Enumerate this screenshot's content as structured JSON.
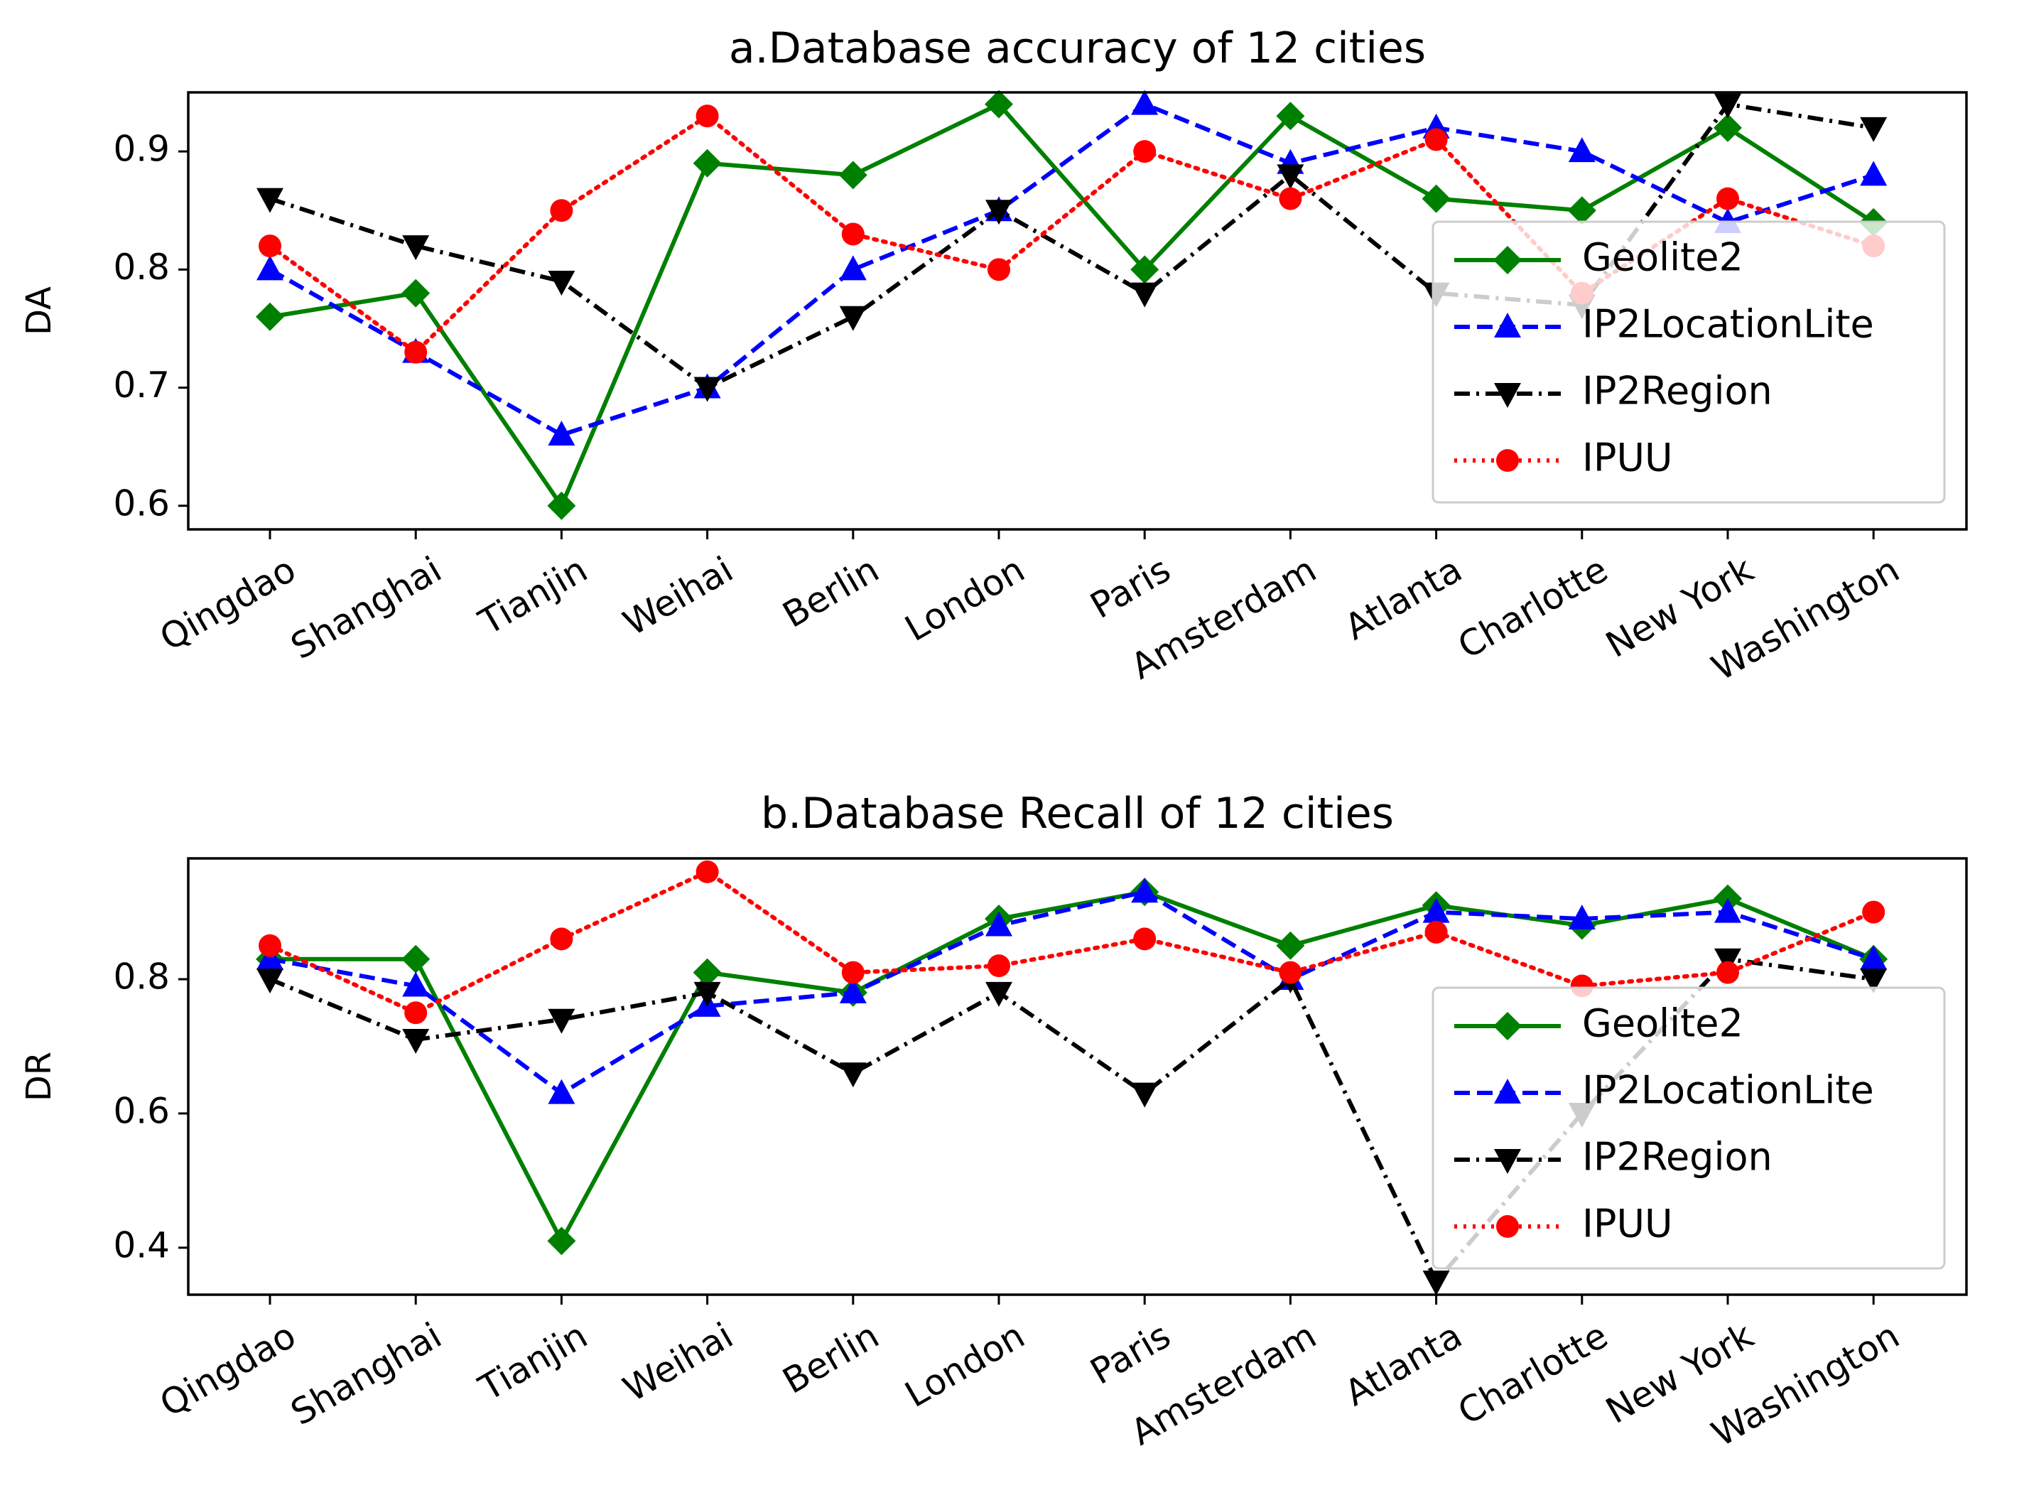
{
  "colors": {
    "Geolite2": "#008000",
    "IP2LocationLite": "#0000ff",
    "IP2Region": "#000000",
    "IPUU": "#ff0000",
    "axis": "#000000"
  },
  "chart_data": [
    {
      "type": "line",
      "title": "a.Database accuracy of 12 cities",
      "xlabel": "",
      "ylabel": "DA",
      "categories": [
        "Qingdao",
        "Shanghai",
        "Tianjin",
        "Weihai",
        "Berlin",
        "London",
        "Paris",
        "Amsterdam",
        "Atlanta",
        "Charlotte",
        "New York",
        "Washington"
      ],
      "ylim": [
        0.58,
        0.95
      ],
      "yticks": [
        0.6,
        0.7,
        0.8,
        0.9
      ],
      "ytick_labels": [
        "0.6",
        "0.7",
        "0.8",
        "0.9"
      ],
      "legend_position": "center-right",
      "series": [
        {
          "name": "Geolite2",
          "marker": "diamond",
          "linestyle": "solid",
          "values": [
            0.76,
            0.78,
            0.6,
            0.89,
            0.88,
            0.94,
            0.8,
            0.93,
            0.86,
            0.85,
            0.92,
            0.84
          ]
        },
        {
          "name": "IP2LocationLite",
          "marker": "triangle-up",
          "linestyle": "dashed",
          "values": [
            0.8,
            0.73,
            0.66,
            0.7,
            0.8,
            0.85,
            0.94,
            0.89,
            0.92,
            0.9,
            0.84,
            0.88
          ]
        },
        {
          "name": "IP2Region",
          "marker": "triangle-down",
          "linestyle": "dashdot",
          "values": [
            0.86,
            0.82,
            0.79,
            0.7,
            0.76,
            0.85,
            0.78,
            0.88,
            0.78,
            0.77,
            0.94,
            0.92
          ]
        },
        {
          "name": "IPUU",
          "marker": "circle",
          "linestyle": "dotted",
          "values": [
            0.82,
            0.73,
            0.85,
            0.93,
            0.83,
            0.8,
            0.9,
            0.86,
            0.91,
            0.78,
            0.86,
            0.82
          ]
        }
      ]
    },
    {
      "type": "line",
      "title": "b.Database Recall of 12 cities",
      "xlabel": "",
      "ylabel": "DR",
      "categories": [
        "Qingdao",
        "Shanghai",
        "Tianjin",
        "Weihai",
        "Berlin",
        "London",
        "Paris",
        "Amsterdam",
        "Atlanta",
        "Charlotte",
        "New York",
        "Washington"
      ],
      "ylim": [
        0.33,
        0.98
      ],
      "yticks": [
        0.4,
        0.6,
        0.8
      ],
      "ytick_labels": [
        "0.4",
        "0.6",
        "0.8"
      ],
      "legend_position": "center-right",
      "series": [
        {
          "name": "Geolite2",
          "marker": "diamond",
          "linestyle": "solid",
          "values": [
            0.83,
            0.83,
            0.41,
            0.81,
            0.78,
            0.89,
            0.93,
            0.85,
            0.91,
            0.88,
            0.92,
            0.83
          ]
        },
        {
          "name": "IP2LocationLite",
          "marker": "triangle-up",
          "linestyle": "dashed",
          "values": [
            0.83,
            0.79,
            0.63,
            0.76,
            0.78,
            0.88,
            0.93,
            0.8,
            0.9,
            0.89,
            0.9,
            0.83
          ]
        },
        {
          "name": "IP2Region",
          "marker": "triangle-down",
          "linestyle": "dashdot",
          "values": [
            0.8,
            0.71,
            0.74,
            0.78,
            0.66,
            0.78,
            0.63,
            0.8,
            0.35,
            0.6,
            0.83,
            0.8
          ]
        },
        {
          "name": "IPUU",
          "marker": "circle",
          "linestyle": "dotted",
          "values": [
            0.85,
            0.75,
            0.86,
            0.96,
            0.81,
            0.82,
            0.86,
            0.81,
            0.87,
            0.79,
            0.81,
            0.9
          ]
        }
      ]
    }
  ]
}
